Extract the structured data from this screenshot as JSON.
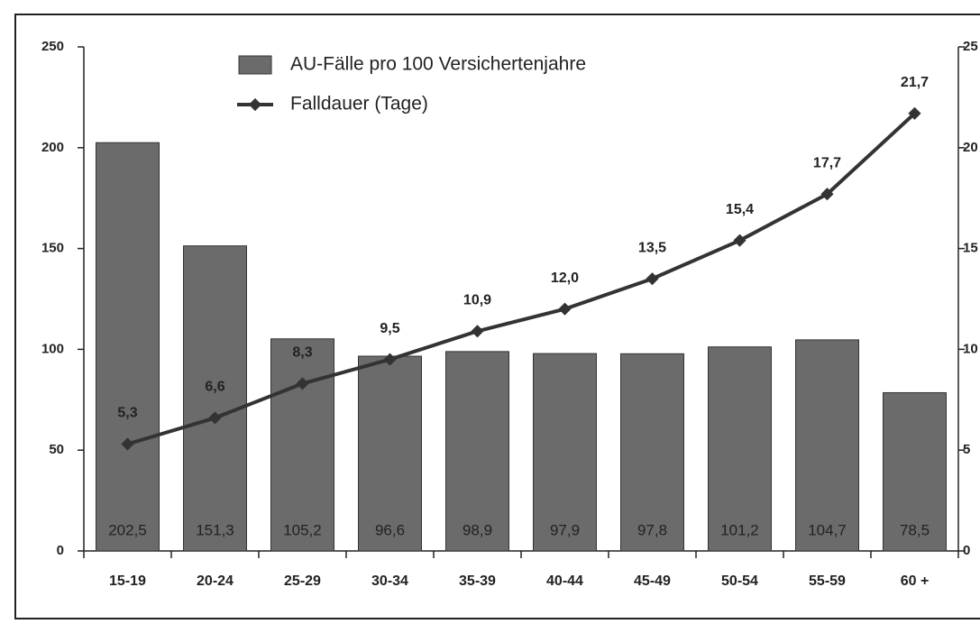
{
  "chart_data": {
    "type": "bar_line",
    "categories": [
      "15-19",
      "20-24",
      "25-29",
      "30-34",
      "35-39",
      "40-44",
      "45-49",
      "50-54",
      "55-59",
      "60 +"
    ],
    "series": [
      {
        "name": "AU-Fälle pro 100 Versichertenjahre",
        "type": "bar",
        "color": "#6b6b6b",
        "values": [
          202.5,
          151.3,
          105.2,
          96.6,
          98.9,
          97.9,
          97.8,
          101.2,
          104.7,
          78.5
        ],
        "value_labels": [
          "202,5",
          "151,3",
          "105,2",
          "96,6",
          "98,9",
          "97,9",
          "97,8",
          "101,2",
          "104,7",
          "78,5"
        ]
      },
      {
        "name": "Falldauer (Tage)",
        "type": "line",
        "axis": "y2",
        "color": "#333333",
        "values": [
          5.3,
          6.6,
          8.3,
          9.5,
          10.9,
          12.0,
          13.5,
          15.4,
          17.7,
          21.7
        ],
        "value_labels": [
          "5,3",
          "6,6",
          "8,3",
          "9,5",
          "10,9",
          "12,0",
          "13,5",
          "15,4",
          "17,7",
          "21,7"
        ]
      }
    ],
    "ylim": [
      0,
      250
    ],
    "yticks": [
      0,
      50,
      100,
      150,
      200,
      250
    ],
    "y2lim": [
      0,
      25
    ],
    "y2ticks": [
      0,
      5,
      10,
      15,
      20,
      25
    ],
    "legend": "top-left",
    "grid": false
  }
}
